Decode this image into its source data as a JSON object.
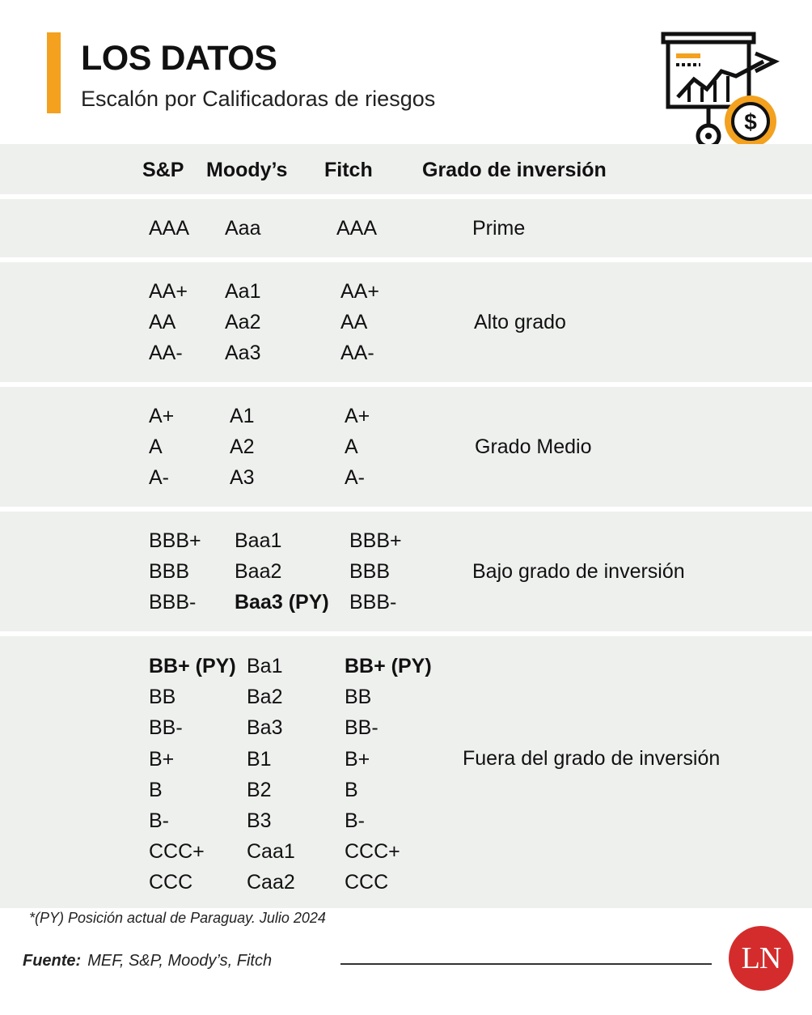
{
  "header": {
    "title": "LOS DATOS",
    "subtitle": "Escalón por Calificadoras de riesgos",
    "icon": "presentation-chart-dollar-icon",
    "accent_color": "#f3a11f"
  },
  "table": {
    "columns": [
      "S&P",
      "Moody’s",
      "Fitch",
      "Grado de inversión"
    ],
    "groups": [
      {
        "grade": "Prime",
        "sp": [
          "AAA"
        ],
        "moodys": [
          "Aaa"
        ],
        "fitch": [
          "AAA"
        ]
      },
      {
        "grade": "Alto grado",
        "sp": [
          "AA+",
          "AA",
          "AA-"
        ],
        "moodys": [
          "Aa1",
          "Aa2",
          "Aa3"
        ],
        "fitch": [
          "AA+",
          "AA",
          "AA-"
        ]
      },
      {
        "grade": "Grado Medio",
        "sp": [
          "A+",
          "A",
          "A-"
        ],
        "moodys": [
          "A1",
          "A2",
          "A3"
        ],
        "fitch": [
          "A+",
          "A",
          "A-"
        ]
      },
      {
        "grade": "Bajo grado de inversión",
        "sp": [
          "BBB+",
          "BBB",
          "BBB-"
        ],
        "moodys": [
          "Baa1",
          "Baa2",
          "Baa3 (PY)"
        ],
        "fitch": [
          "BBB+",
          "BBB",
          "BBB-"
        ]
      },
      {
        "grade": "Fuera del grado de inversión",
        "sp": [
          "BB+ (PY)",
          "BB",
          "BB-",
          "B+",
          "B",
          "B-",
          "CCC+",
          "CCC"
        ],
        "moodys": [
          "Ba1",
          "Ba2",
          "Ba3",
          "B1",
          "B2",
          "B3",
          "Caa1",
          "Caa2"
        ],
        "fitch": [
          "BB+ (PY)",
          "BB",
          "BB-",
          "B+",
          "B",
          "B-",
          "CCC+",
          "CCC"
        ]
      }
    ],
    "highlight_marker": "(PY)"
  },
  "footer": {
    "note": "*(PY) Posición actual de Paraguay. Julio 2024",
    "source_label": "Fuente:",
    "source_text": "MEF, S&P, Moody’s, Fitch",
    "brand_logo": "LN",
    "brand_color": "#d42c2c"
  }
}
